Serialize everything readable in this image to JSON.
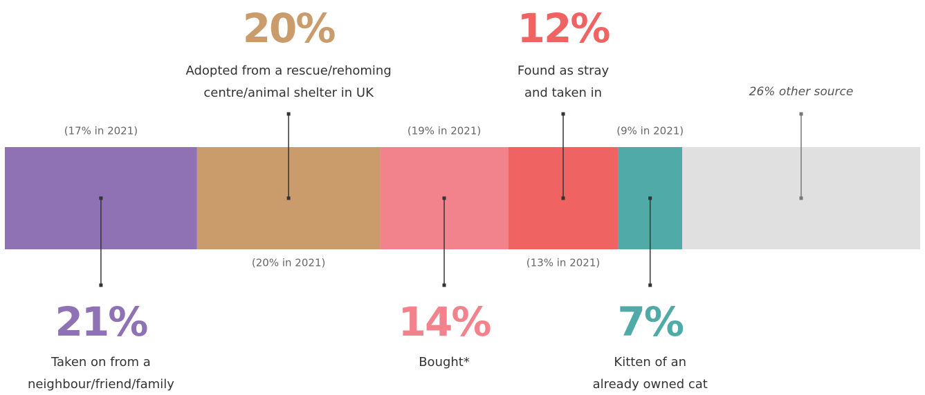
{
  "chart_data": {
    "type": "stacked_bar",
    "values": [
      21,
      20,
      14,
      12,
      7,
      26
    ],
    "value_labels": [
      "21%",
      "20%",
      "14%",
      "12%",
      "7%",
      "26% other source"
    ],
    "colors": [
      "#8f72b3",
      "#ca9c6c",
      "#f2838d",
      "#f06363",
      "#50aaa7",
      "#e0e0e0"
    ],
    "descriptions": [
      [
        "Taken on from a",
        "neighbour/friend/family"
      ],
      [
        "Adopted from a rescue/rehoming",
        "centre/animal shelter in UK"
      ],
      [
        "Bought*"
      ],
      [
        "Found as stray",
        "and taken in"
      ],
      [
        "Kitten of an",
        "already owned cat"
      ],
      null
    ],
    "previous": [
      "(17% in 2021)",
      "(20% in 2021)",
      "(19% in 2021)",
      "(13% in 2021)",
      "(9% in 2021)",
      null
    ]
  }
}
